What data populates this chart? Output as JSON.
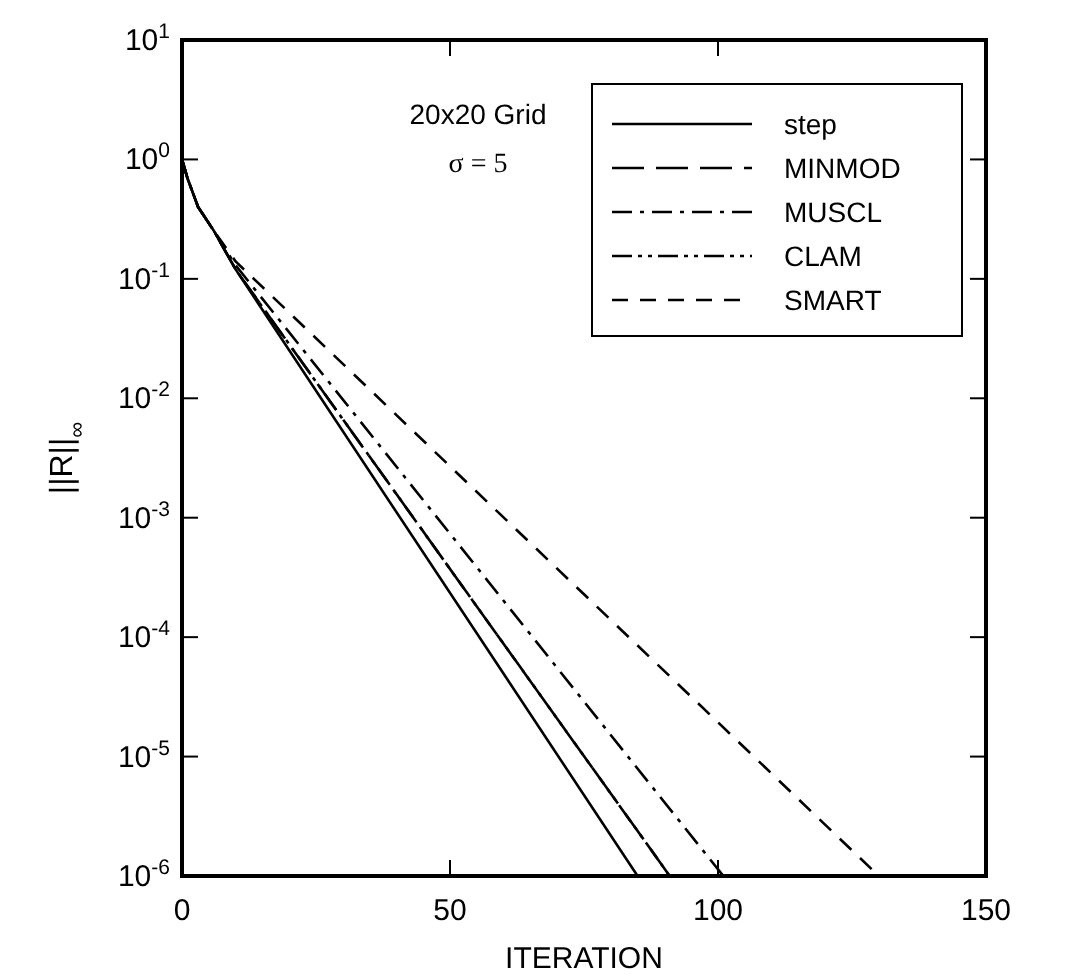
{
  "chart_data": {
    "type": "line",
    "xlabel": "ITERATION",
    "ylabel": "||R||$_{∞}$",
    "log": "y",
    "xlim": [
      0,
      150
    ],
    "ylim": [
      1e-06,
      10
    ],
    "xticks": [
      0,
      50,
      100,
      150
    ],
    "yticks": [
      {
        "value": 1e-06,
        "label": "10$^{-6}$"
      },
      {
        "value": 1e-05,
        "label": "10$^{-5}$"
      },
      {
        "value": 0.0001,
        "label": "10$^{-4}$"
      },
      {
        "value": 0.001,
        "label": "10$^{-3}$"
      },
      {
        "value": 0.01,
        "label": "10$^{-2}$"
      },
      {
        "value": 0.1,
        "label": "10$^{-1}$"
      },
      {
        "value": 1,
        "label": "10$^{0}$"
      },
      {
        "value": 10,
        "label": "10$^{1}$"
      }
    ],
    "grid": false,
    "legend": "top right",
    "marker": "none",
    "annotations": [
      "20x20 Grid",
      "σ = 5"
    ],
    "series": [
      {
        "name": "step",
        "color": "#000000",
        "line_style": "solid",
        "x": [
          0,
          1,
          3,
          6,
          10,
          85
        ],
        "values": [
          1,
          0.7,
          0.4,
          0.25,
          0.12,
          1e-06
        ]
      },
      {
        "name": "MINMOD",
        "color": "#000000",
        "line_style": "longdash",
        "x": [
          0,
          1,
          3,
          6,
          10,
          91
        ],
        "values": [
          1,
          0.7,
          0.4,
          0.25,
          0.12,
          1e-06
        ]
      },
      {
        "name": "MUSCL",
        "color": "#000000",
        "line_style": "dashdot",
        "x": [
          0,
          1,
          3,
          6,
          10,
          101
        ],
        "values": [
          1,
          0.7,
          0.4,
          0.25,
          0.13,
          1e-06
        ]
      },
      {
        "name": "CLAM",
        "color": "#000000",
        "line_style": "dashdotdot",
        "x": [
          0,
          1,
          3,
          6,
          10,
          91
        ],
        "values": [
          1,
          0.7,
          0.4,
          0.25,
          0.12,
          1e-06
        ]
      },
      {
        "name": "SMART",
        "color": "#000000",
        "line_style": "dashed",
        "x": [
          0,
          1,
          3,
          6,
          10,
          130
        ],
        "values": [
          1,
          0.7,
          0.4,
          0.25,
          0.14,
          1e-06
        ]
      }
    ]
  }
}
